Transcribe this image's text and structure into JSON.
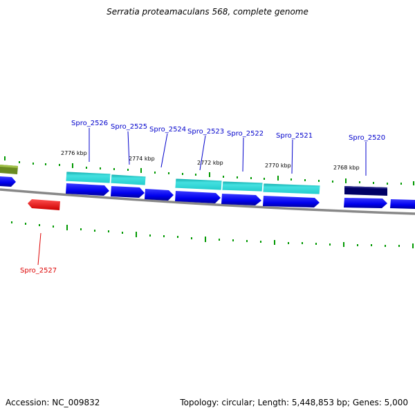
{
  "title": "Serratia proteamaculans 568, complete genome",
  "footer": {
    "accession": "Accession: NC_009832",
    "summary": "Topology: circular; Length: 5,448,853 bp; Genes: 5,000"
  },
  "scale_labels": [
    "2776 kbp",
    "2774 kbp",
    "2772 kbp",
    "2770 kbp",
    "2768 kbp"
  ],
  "gene_labels": [
    {
      "text": "Spro_2526",
      "color": "#0000cc"
    },
    {
      "text": "Spro_2525",
      "color": "#0000cc"
    },
    {
      "text": "Spro_2524",
      "color": "#0000cc"
    },
    {
      "text": "Spro_2523",
      "color": "#0000cc"
    },
    {
      "text": "Spro_2522",
      "color": "#0000cc"
    },
    {
      "text": "Spro_2521",
      "color": "#0000cc"
    },
    {
      "text": "Spro_2520",
      "color": "#0000cc"
    },
    {
      "text": "Spro_2527",
      "color": "#dd0000"
    }
  ],
  "colors": {
    "cds": "#0000ee",
    "rna_band": "#22cccc",
    "dark_feature": "#000066",
    "reverse_gene": "#ee0000",
    "olive_feature": "#6a8a22",
    "ticks": "#009900",
    "backbone": "#888888"
  }
}
